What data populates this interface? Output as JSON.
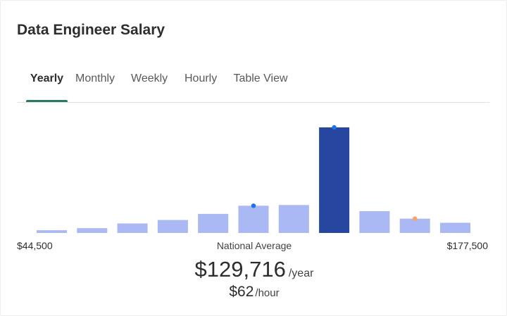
{
  "title": "Data Engineer Salary",
  "tabs": [
    {
      "label": "Yearly",
      "active": true
    },
    {
      "label": "Monthly",
      "active": false
    },
    {
      "label": "Weekly",
      "active": false
    },
    {
      "label": "Hourly",
      "active": false
    },
    {
      "label": "Table View",
      "active": false
    }
  ],
  "range": {
    "min_label": "$44,500",
    "max_label": "$177,500"
  },
  "average": {
    "label": "National Average",
    "yearly_value": "$129,716",
    "yearly_unit": "/year",
    "hourly_value": "$62",
    "hourly_unit": "/hour"
  },
  "colors": {
    "bar": "#aab8f4",
    "bar_highlight": "#2746a0",
    "marker_blue": "#1a73e8",
    "marker_orange": "#ffa261",
    "tab_underline": "#2b7a5f"
  },
  "chart_data": {
    "type": "bar",
    "x_range": [
      44500,
      177500
    ],
    "values": [
      4,
      7,
      14,
      19,
      28,
      40,
      41,
      155,
      32,
      21,
      15
    ],
    "highlight_index": 7,
    "markers": [
      {
        "bar_index": 5,
        "color": "blue"
      },
      {
        "bar_index": 7,
        "color": "blue"
      },
      {
        "bar_index": 9,
        "color": "orange"
      }
    ],
    "title": "",
    "xlabel": "",
    "ylabel": ""
  }
}
